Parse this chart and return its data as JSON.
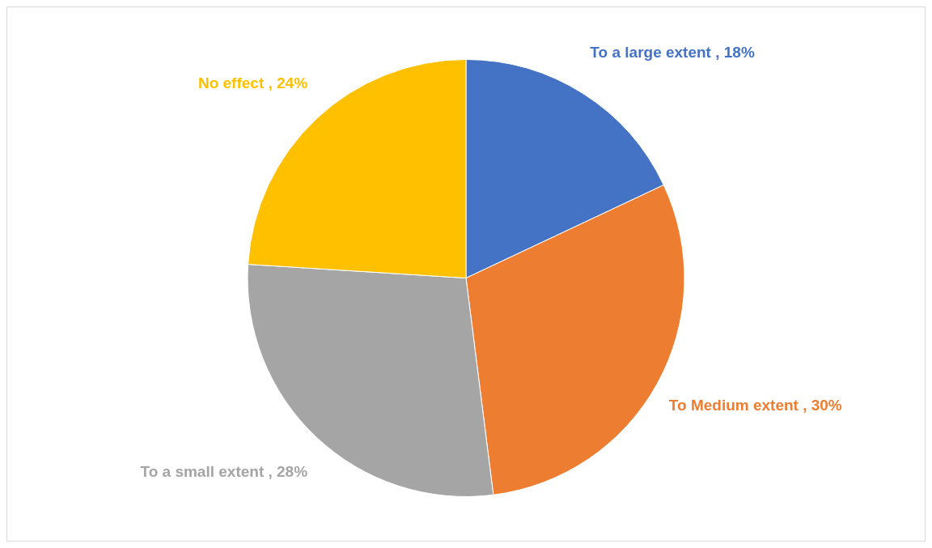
{
  "chart_data": {
    "type": "pie",
    "categories": [
      "To a large extent",
      "To Medium extent",
      "To a small extent",
      "No effect"
    ],
    "values": [
      18,
      30,
      28,
      24
    ],
    "colors": [
      "#4472c4",
      "#ed7d31",
      "#a5a5a5",
      "#ffc000"
    ],
    "value_labels": [
      "18%",
      "30%",
      "28%",
      "24%"
    ],
    "legend": false
  }
}
